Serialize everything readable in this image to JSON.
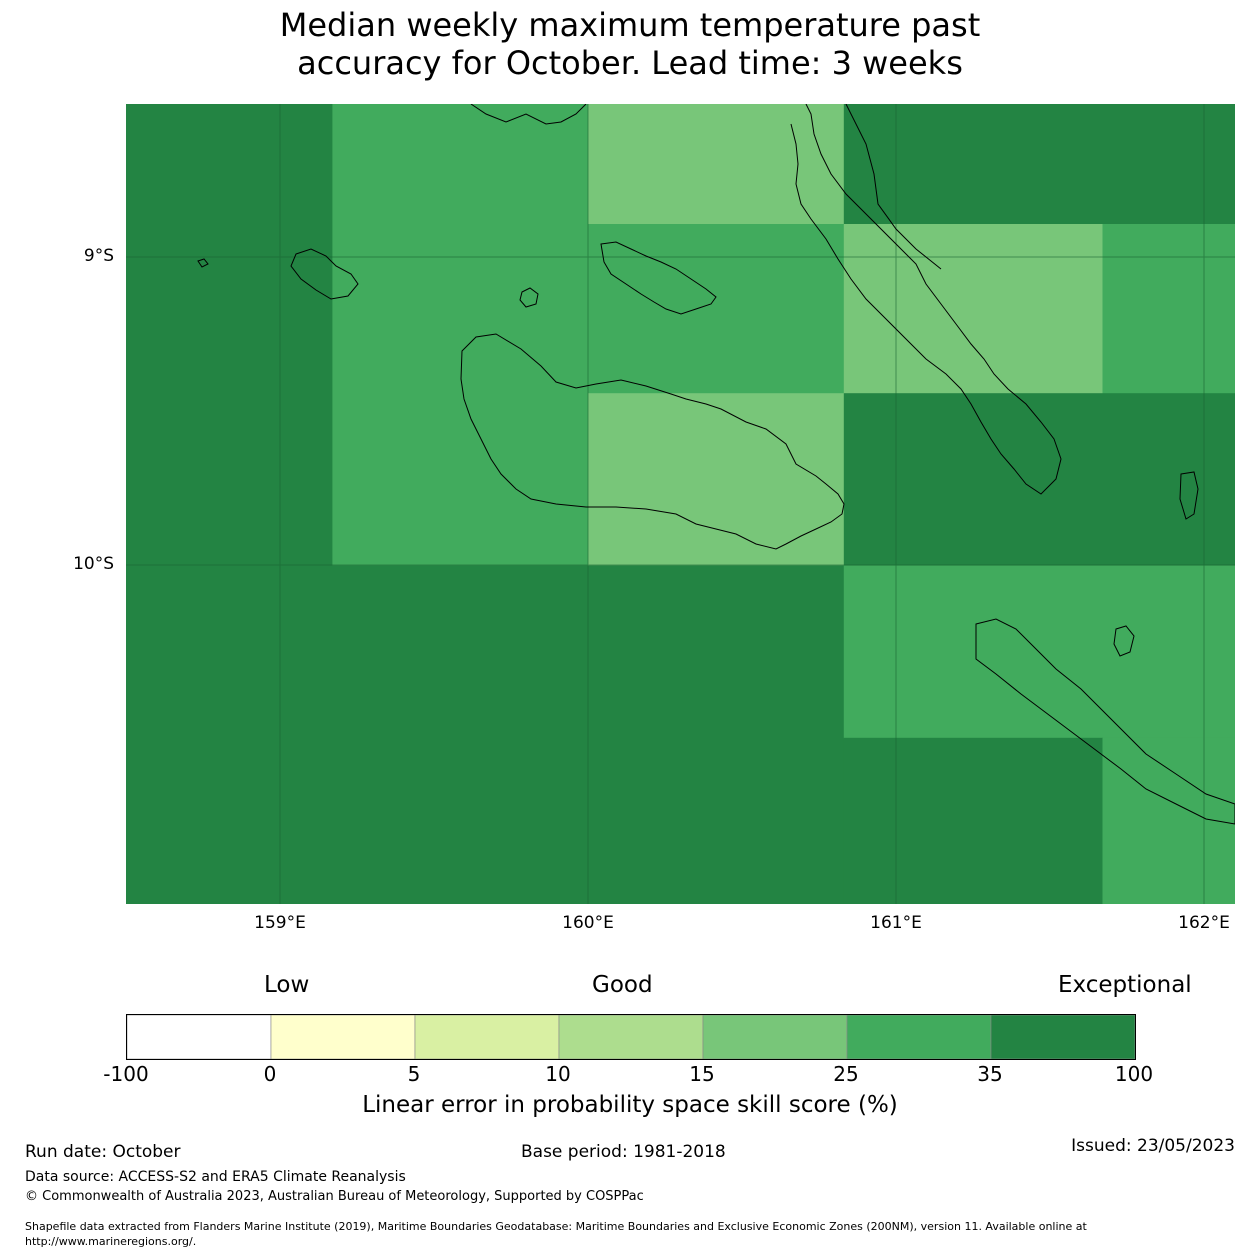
{
  "title": {
    "line1": "Median weekly maximum temperature past",
    "line2": "accuracy for October. Lead time: 3 weeks"
  },
  "map": {
    "lat_labels": [
      "9°S",
      "10°S"
    ],
    "lon_labels": [
      "159°E",
      "160°E",
      "161°E",
      "162°E"
    ],
    "cells": [
      {
        "lon_min": 158.5,
        "lon_max": 159.17,
        "lat_min": -10.0,
        "lat_max": -8.5,
        "value": "35-100",
        "color": "#238443"
      },
      {
        "lon_min": 159.17,
        "lon_max": 160.0,
        "lat_min": -10.0,
        "lat_max": -8.5,
        "value": "25-35",
        "color": "#41ab5d"
      },
      {
        "lon_min": 160.0,
        "lon_max": 160.83,
        "lat_min": -8.89,
        "lat_max": -8.5,
        "value": "15-25",
        "color": "#78c679"
      },
      {
        "lon_min": 160.0,
        "lon_max": 160.83,
        "lat_min": -9.44,
        "lat_max": -8.89,
        "value": "25-35",
        "color": "#41ab5d"
      },
      {
        "lon_min": 160.0,
        "lon_max": 160.83,
        "lat_min": -10.0,
        "lat_max": -9.44,
        "value": "15-25",
        "color": "#78c679"
      },
      {
        "lon_min": 160.83,
        "lon_max": 162.1,
        "lat_min": -8.89,
        "lat_max": -8.5,
        "value": "35-100",
        "color": "#238443"
      },
      {
        "lon_min": 160.83,
        "lon_max": 161.67,
        "lat_min": -9.44,
        "lat_max": -8.89,
        "value": "15-25",
        "color": "#78c679"
      },
      {
        "lon_min": 161.67,
        "lon_max": 162.1,
        "lat_min": -9.44,
        "lat_max": -8.89,
        "value": "25-35",
        "color": "#41ab5d"
      },
      {
        "lon_min": 160.83,
        "lon_max": 162.1,
        "lat_min": -10.0,
        "lat_max": -9.44,
        "value": "35-100",
        "color": "#238443"
      },
      {
        "lon_min": 158.5,
        "lon_max": 160.83,
        "lat_min": -11.1,
        "lat_max": -10.0,
        "value": "35-100",
        "color": "#238443"
      },
      {
        "lon_min": 160.83,
        "lon_max": 162.1,
        "lat_min": -10.56,
        "lat_max": -10.0,
        "value": "25-35",
        "color": "#41ab5d"
      },
      {
        "lon_min": 160.83,
        "lon_max": 161.67,
        "lat_min": -11.1,
        "lat_max": -10.56,
        "value": "35-100",
        "color": "#238443"
      },
      {
        "lon_min": 161.67,
        "lon_max": 162.1,
        "lat_min": -11.1,
        "lat_max": -10.56,
        "value": "25-35",
        "color": "#41ab5d"
      }
    ]
  },
  "legend": {
    "categories": [
      "Low",
      "Good",
      "Exceptional"
    ],
    "ticks": [
      "-100",
      "0",
      "5",
      "10",
      "15",
      "25",
      "35",
      "100"
    ],
    "colors": [
      "#ffffff",
      "#ffffcc",
      "#d9f0a3",
      "#addd8e",
      "#78c679",
      "#41ab5d",
      "#238443"
    ],
    "title": "Linear error in probability space skill score (%)"
  },
  "footer": {
    "run_date": "Run date: October",
    "base_period": "Base period: 1981-2018",
    "issued": "Issued: 23/05/2023",
    "data_source": "Data source: ACCESS-S2 and ERA5 Climate Reanalysis",
    "copyright": "© Commonwealth of Australia 2023, Australian Bureau of Meteorology, Supported by COSPPac",
    "shapefile_line1": "Shapefile data extracted from Flanders Marine Institute (2019), Maritime Boundaries Geodatabase: Maritime Boundaries and Exclusive Economic Zones (200NM), version 11. Available online at",
    "shapefile_line2": "http://www.marineregions.org/."
  }
}
